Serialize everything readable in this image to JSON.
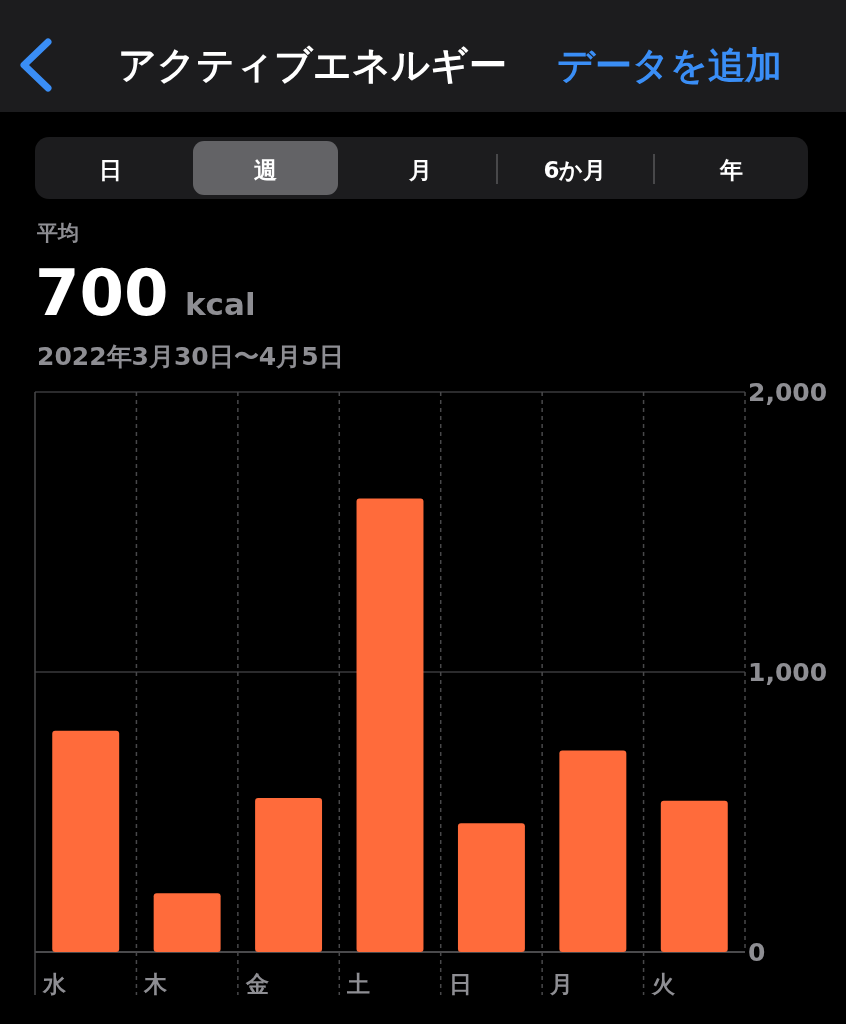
{
  "chart_data": {
    "type": "bar",
    "title": "アクティブエネルギー",
    "annotations": [
      "データを追加",
      "日",
      "週",
      "月",
      "6か月",
      "年",
      "平均",
      "700",
      "kcal",
      "2022年3月30日〜4月5日"
    ],
    "categories": [
      "水",
      "木",
      "金",
      "土",
      "日",
      "月",
      "火"
    ],
    "values": [
      790,
      210,
      550,
      1620,
      460,
      720,
      540
    ],
    "color": "#ff6b3b",
    "ylim": [
      0,
      2000
    ],
    "yticks": [
      0,
      {
        "value": 1000,
        "label": "1,000"
      },
      {
        "value": 2000,
        "label": "2,000"
      }
    ],
    "grid": true
  }
}
